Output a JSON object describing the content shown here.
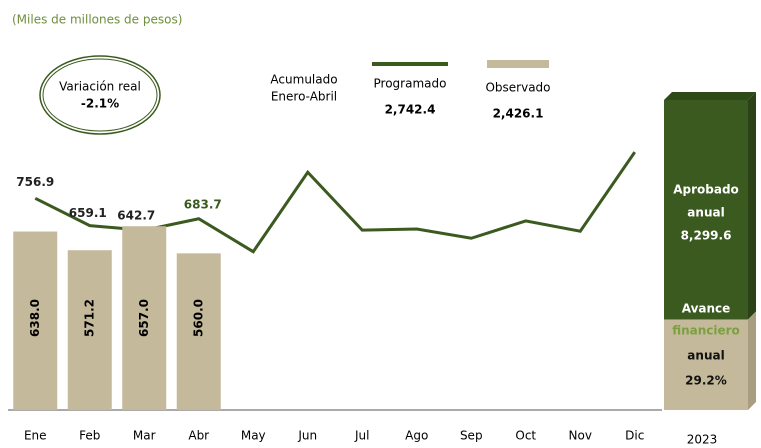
{
  "chart_data": {
    "type": "bar_line",
    "subtitle": "(Miles de millones de pesos)",
    "categories": [
      "Ene",
      "Feb",
      "Mar",
      "Abr",
      "May",
      "Jun",
      "Jul",
      "Ago",
      "Sep",
      "Oct",
      "Nov",
      "Dic"
    ],
    "ylim": [
      0,
      1430
    ],
    "series": [
      {
        "name": "Programado",
        "type": "line",
        "color": "#3b5a1f",
        "values": [
          756.9,
          659.1,
          642.7,
          683.7,
          566,
          850,
          643,
          647,
          614,
          676,
          639,
          922
        ],
        "value_labels": [
          "756.9",
          "659.1",
          "642.7",
          "683.7",
          null,
          null,
          null,
          null,
          null,
          null,
          null,
          null
        ],
        "total": {
          "value": 2742.4,
          "label": "2,742.4"
        }
      },
      {
        "name": "Observado",
        "type": "bar",
        "color": "#c5b99b",
        "values": [
          638,
          571.2,
          657,
          560,
          null,
          null,
          null,
          null,
          null,
          null,
          null,
          null
        ],
        "value_labels": [
          "638.0",
          "571.2",
          "657.0",
          "560.0",
          null,
          null,
          null,
          null,
          null,
          null,
          null,
          null
        ],
        "total": {
          "value": 2426.1,
          "label": "2,426.1"
        }
      }
    ],
    "legend_title": [
      "Acumulado",
      "Enero-Abril"
    ],
    "variation": {
      "label": "Variación real",
      "value": -2.1,
      "value_label": "-2.1%"
    },
    "annual": {
      "category": "2023",
      "approved": {
        "label": [
          "Aprobado",
          "anual"
        ],
        "value": 8299.6,
        "value_label": "8,299.6",
        "color": "#3b5a1f"
      },
      "progress": {
        "label": [
          "Avance",
          "financiero",
          "anual"
        ],
        "value": 29.2,
        "value_label": "29.2%",
        "color": "#c5b99b"
      }
    }
  }
}
